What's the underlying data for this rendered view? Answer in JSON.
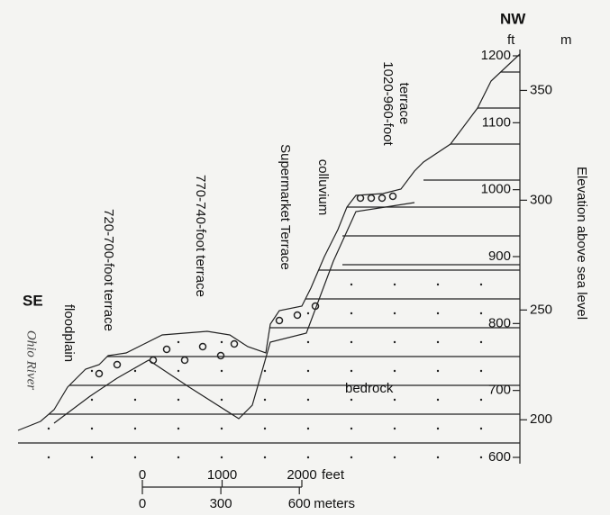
{
  "labels": {
    "se": "SE",
    "nw": "NW",
    "ohio_river": "Ohio River",
    "floodplain": "floodplain",
    "terrace_720": "720-700-foot terrace",
    "terrace_770": "770-740-foot terrace",
    "supermarket": "Supermarket Terrace",
    "colluvium": "colluvium",
    "terrace_1020": [
      "1020-960-foot",
      "terrace"
    ],
    "bedrock": "bedrock"
  },
  "elevation_axis": {
    "title": "Elevation above sea level",
    "feet_unit": "ft",
    "meters_unit": "m",
    "feet_ticks": [
      600,
      700,
      800,
      900,
      1000,
      1100,
      1200
    ],
    "meter_ticks": [
      200,
      250,
      300,
      350
    ]
  },
  "scale_bar": {
    "feet_ticks": [
      0,
      1000,
      2000
    ],
    "feet_unit": "feet",
    "meter_ticks": [
      0,
      300,
      600
    ],
    "meters_unit": "meters"
  }
}
